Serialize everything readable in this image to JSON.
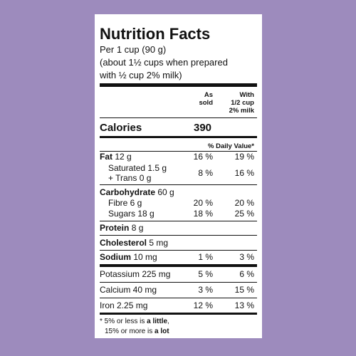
{
  "title": "Nutrition Facts",
  "serving": [
    "Per 1 cup (90 g)",
    "(about 1½ cups when prepared",
    "with ½ cup 2% milk)"
  ],
  "columns": {
    "as_sold": [
      "As",
      "sold"
    ],
    "with_milk": [
      "With",
      "1/2 cup",
      "2% milk"
    ]
  },
  "calories": {
    "label": "Calories",
    "value": "390"
  },
  "daily_value_header": "% Daily Value*",
  "rows": [
    {
      "name": "Fat",
      "amount": "12 g",
      "as_sold": "16 %",
      "with_milk": "19 %"
    },
    {
      "name": "Saturated 1.5 g",
      "amount": "+ Trans 0 g",
      "as_sold": "8 %",
      "with_milk": "16 %"
    },
    {
      "name": "Carbohydrate",
      "amount": "60 g"
    },
    {
      "name": "Fibre 6 g",
      "as_sold": "20 %",
      "with_milk": "20 %"
    },
    {
      "name": "Sugars 18 g",
      "as_sold": "18 %",
      "with_milk": "25 %"
    },
    {
      "name": "Protein",
      "amount": "8 g"
    },
    {
      "name": "Cholesterol",
      "amount": "5 mg"
    },
    {
      "name": "Sodium",
      "amount": "10 mg",
      "as_sold": "1 %",
      "with_milk": "3 %"
    },
    {
      "name": "Potassium 225 mg",
      "as_sold": "5 %",
      "with_milk": "6 %"
    },
    {
      "name": "Calcium 40 mg",
      "as_sold": "3 %",
      "with_milk": "15 %"
    },
    {
      "name": "Iron 2.25 mg",
      "as_sold": "12 %",
      "with_milk": "13 %"
    }
  ],
  "footnote": {
    "line1": [
      "* 5% or less is ",
      "a little",
      ","
    ],
    "line2": [
      "15% or more is ",
      "a lot"
    ]
  }
}
